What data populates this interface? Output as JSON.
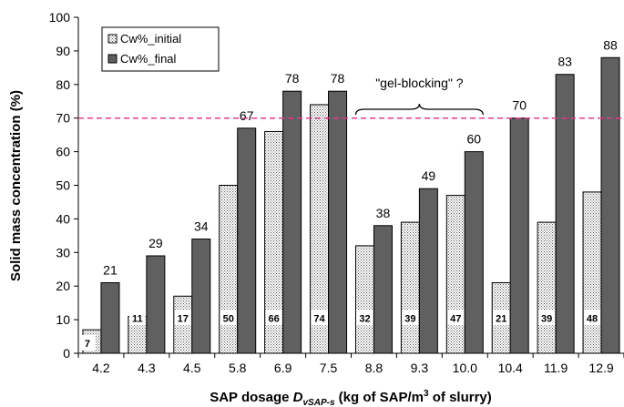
{
  "chart_data": {
    "type": "bar",
    "categories": [
      "4.2",
      "4.3",
      "4.5",
      "5.8",
      "6.9",
      "7.5",
      "8.8",
      "9.3",
      "10.0",
      "10.4",
      "11.9",
      "12.9"
    ],
    "series": [
      {
        "name": "Cw%_initial",
        "values": [
          7,
          11,
          17,
          50,
          66,
          74,
          32,
          39,
          47,
          21,
          39,
          48
        ],
        "pattern": "dotted"
      },
      {
        "name": "Cw%_final",
        "values": [
          21,
          29,
          34,
          67,
          78,
          78,
          38,
          49,
          60,
          70,
          83,
          88
        ],
        "color": "#606060"
      }
    ],
    "ylabel": "Solid mass concentration (%)",
    "xlabel": {
      "prefix": "SAP dosage ",
      "symbol": "D",
      "subscript": "vSAP-s",
      "suffix_a": " (kg of SAP/m",
      "superscript": "3",
      "suffix_b": " of slurry)"
    },
    "ylim": [
      0,
      100
    ],
    "yticks": [
      0,
      10,
      20,
      30,
      40,
      50,
      60,
      70,
      80,
      90,
      100
    ],
    "reference_line": {
      "y": 70,
      "color": "#e8388a",
      "style": "dashed"
    },
    "annotations": [
      {
        "text": "\"gel-blocking\" ?",
        "brace_from_category": "8.8",
        "brace_to_category": "10.0"
      }
    ],
    "legend": {
      "placement": "top-left"
    },
    "grid": false
  }
}
